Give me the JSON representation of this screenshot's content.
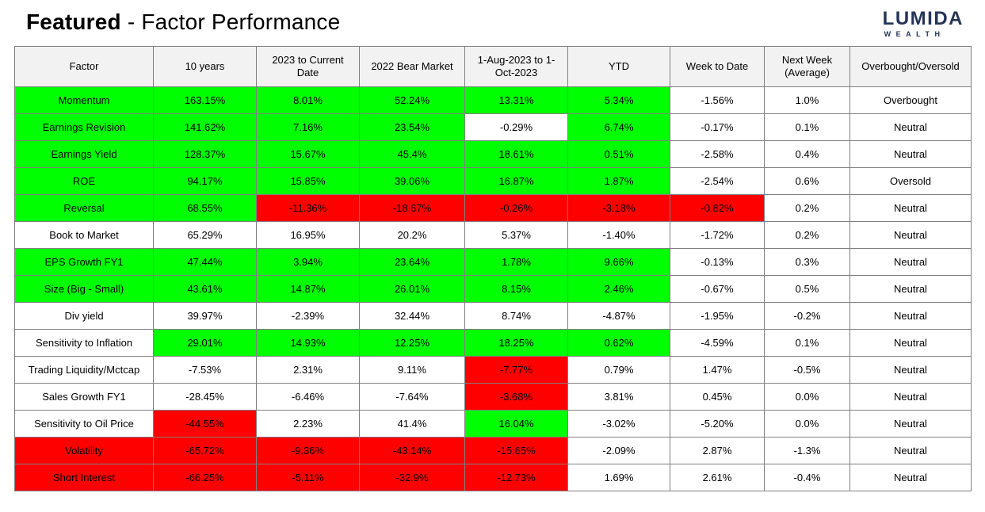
{
  "page": {
    "title_bold": "Featured",
    "title_rest": " - Factor Performance"
  },
  "logo": {
    "main": "LUMIDA",
    "sub": "WEALTH",
    "color": "#263457"
  },
  "colors": {
    "green": "#00FF00",
    "red": "#FF0000",
    "white": "#FFFFFF",
    "header_bg": "#F2F2F2",
    "grid": "#808080"
  },
  "chart_data": {
    "type": "table",
    "title": "Featured - Factor Performance",
    "columns": [
      "Factor",
      "10 years",
      "2023 to Current Date",
      "2022 Bear Market",
      "1-Aug-2023 to 1-Oct-2023",
      "YTD",
      "Week to Date",
      "Next Week (Average)",
      "Overbought/Oversold"
    ],
    "rows": [
      {
        "factor": "Momentum",
        "factor_color": "green",
        "values": [
          "163.15%",
          "8.01%",
          "52.24%",
          "13.31%",
          "5.34%",
          "-1.56%",
          "1.0%",
          "Overbought"
        ],
        "colors": [
          "green",
          "green",
          "green",
          "green",
          "green",
          "white",
          "white",
          "white"
        ]
      },
      {
        "factor": "Earnings Revision",
        "factor_color": "green",
        "values": [
          "141.62%",
          "7.16%",
          "23.54%",
          "-0.29%",
          "6.74%",
          "-0.17%",
          "0.1%",
          "Neutral"
        ],
        "colors": [
          "green",
          "green",
          "green",
          "white",
          "green",
          "white",
          "white",
          "white"
        ]
      },
      {
        "factor": "Earnings Yield",
        "factor_color": "green",
        "values": [
          "128.37%",
          "15.67%",
          "45.4%",
          "18.61%",
          "0.51%",
          "-2.58%",
          "0.4%",
          "Neutral"
        ],
        "colors": [
          "green",
          "green",
          "green",
          "green",
          "green",
          "white",
          "white",
          "white"
        ]
      },
      {
        "factor": "ROE",
        "factor_color": "green",
        "values": [
          "94.17%",
          "15.85%",
          "39.06%",
          "16.87%",
          "1.87%",
          "-2.54%",
          "0.6%",
          "Oversold"
        ],
        "colors": [
          "green",
          "green",
          "green",
          "green",
          "green",
          "white",
          "white",
          "white"
        ]
      },
      {
        "factor": "Reversal",
        "factor_color": "green",
        "values": [
          "68.55%",
          "-11.36%",
          "-18.67%",
          "-0.26%",
          "-3.18%",
          "-0.82%",
          "0.2%",
          "Neutral"
        ],
        "colors": [
          "green",
          "red",
          "red",
          "red",
          "red",
          "red",
          "white",
          "white"
        ]
      },
      {
        "factor": "Book to Market",
        "factor_color": "white",
        "values": [
          "65.29%",
          "16.95%",
          "20.2%",
          "5.37%",
          "-1.40%",
          "-1.72%",
          "0.2%",
          "Neutral"
        ],
        "colors": [
          "white",
          "white",
          "white",
          "white",
          "white",
          "white",
          "white",
          "white"
        ]
      },
      {
        "factor": "EPS Growth FY1",
        "factor_color": "green",
        "values": [
          "47.44%",
          "3.94%",
          "23.64%",
          "1.78%",
          "9.66%",
          "-0.13%",
          "0.3%",
          "Neutral"
        ],
        "colors": [
          "green",
          "green",
          "green",
          "green",
          "green",
          "white",
          "white",
          "white"
        ]
      },
      {
        "factor": "Size (Big - Small)",
        "factor_color": "green",
        "values": [
          "43.61%",
          "14.87%",
          "26.01%",
          "8.15%",
          "2.46%",
          "-0.67%",
          "0.5%",
          "Neutral"
        ],
        "colors": [
          "green",
          "green",
          "green",
          "green",
          "green",
          "white",
          "white",
          "white"
        ]
      },
      {
        "factor": "Div yield",
        "factor_color": "white",
        "values": [
          "39.97%",
          "-2.39%",
          "32.44%",
          "8.74%",
          "-4.87%",
          "-1.95%",
          "-0.2%",
          "Neutral"
        ],
        "colors": [
          "white",
          "white",
          "white",
          "white",
          "white",
          "white",
          "white",
          "white"
        ]
      },
      {
        "factor": "Sensitivity to Inflation",
        "factor_color": "white",
        "values": [
          "29.01%",
          "14.93%",
          "12.25%",
          "18.25%",
          "0.62%",
          "-4.59%",
          "0.1%",
          "Neutral"
        ],
        "colors": [
          "green",
          "green",
          "green",
          "green",
          "green",
          "white",
          "white",
          "white"
        ]
      },
      {
        "factor": "Trading Liquidity/Mctcap",
        "factor_color": "white",
        "values": [
          "-7.53%",
          "2.31%",
          "9.11%",
          "-7.77%",
          "0.79%",
          "1.47%",
          "-0.5%",
          "Neutral"
        ],
        "colors": [
          "white",
          "white",
          "white",
          "red",
          "white",
          "white",
          "white",
          "white"
        ]
      },
      {
        "factor": "Sales Growth FY1",
        "factor_color": "white",
        "values": [
          "-28.45%",
          "-6.46%",
          "-7.64%",
          "-3.68%",
          "3.81%",
          "0.45%",
          "0.0%",
          "Neutral"
        ],
        "colors": [
          "white",
          "white",
          "white",
          "red",
          "white",
          "white",
          "white",
          "white"
        ]
      },
      {
        "factor": "Sensitivity to Oil Price",
        "factor_color": "white",
        "values": [
          "-44.55%",
          "2.23%",
          "41.4%",
          "16.04%",
          "-3.02%",
          "-5.20%",
          "0.0%",
          "Neutral"
        ],
        "colors": [
          "red",
          "white",
          "white",
          "green",
          "white",
          "white",
          "white",
          "white"
        ]
      },
      {
        "factor": "Volatility",
        "factor_color": "red",
        "values": [
          "-65.72%",
          "-9.36%",
          "-43.14%",
          "-15.65%",
          "-2.09%",
          "2.87%",
          "-1.3%",
          "Neutral"
        ],
        "colors": [
          "red",
          "red",
          "red",
          "red",
          "white",
          "white",
          "white",
          "white"
        ]
      },
      {
        "factor": "Short Interest",
        "factor_color": "red",
        "values": [
          "-66.25%",
          "-5.11%",
          "-32.9%",
          "-12.73%",
          "1.69%",
          "2.61%",
          "-0.4%",
          "Neutral"
        ],
        "colors": [
          "red",
          "red",
          "red",
          "red",
          "white",
          "white",
          "white",
          "white"
        ]
      }
    ]
  }
}
